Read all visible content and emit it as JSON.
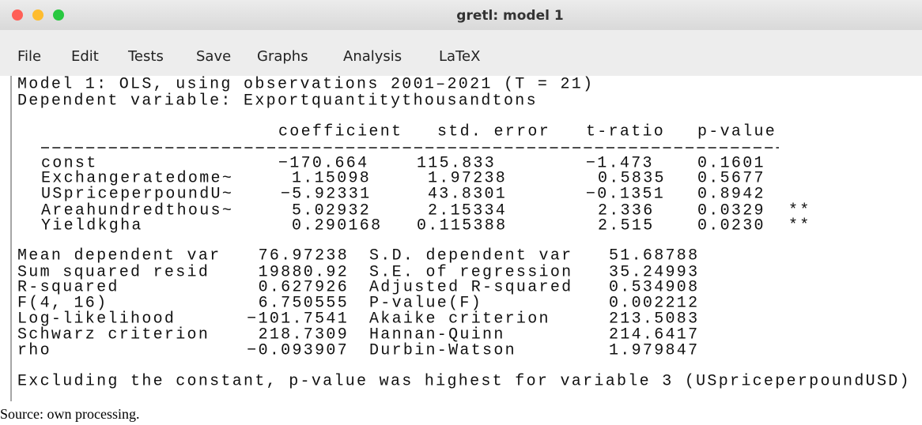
{
  "window": {
    "title": "gretl: model 1"
  },
  "menu": [
    "File",
    "Edit",
    "Tests",
    "Save",
    "Graphs",
    "Analysis",
    "LaTeX"
  ],
  "output": {
    "heading": [
      "Model 1: OLS, using observations 2001–2021 (T = 21)",
      "Dependent variable: Exportquantitythousandtons"
    ],
    "table": {
      "columns": [
        "coefficient",
        "std. error",
        "t-ratio",
        "p-value"
      ],
      "rows": [
        {
          "name": "const",
          "coefficient": "−170.664",
          "std_error": "115.833",
          "t_ratio": "−1.473",
          "p_value": "0.1601"
        },
        {
          "name": "Exchangeratedome~",
          "coefficient": "1.15098",
          "std_error": "1.97238",
          "t_ratio": "0.5835",
          "p_value": "0.5677"
        },
        {
          "name": "USpriceperpoundU~",
          "coefficient": "−5.92331",
          "std_error": "43.8301",
          "t_ratio": "−0.1351",
          "p_value": "0.8942"
        },
        {
          "name": "Areahundredthous~",
          "coefficient": "5.02932",
          "std_error": "2.15334",
          "t_ratio": "2.336",
          "p_value": "0.0329",
          "stars": "**"
        },
        {
          "name": "Yieldkgha",
          "coefficient": "0.290168",
          "std_error": "0.115388",
          "t_ratio": "2.515",
          "p_value": "0.0230",
          "stars": "**"
        }
      ]
    },
    "stats": [
      [
        "Mean dependent var",
        "76.97238",
        "S.D. dependent var",
        "51.68788"
      ],
      [
        "Sum squared resid",
        "19880.92",
        "S.E. of regression",
        "35.24993"
      ],
      [
        "R-squared",
        "0.627926",
        "Adjusted R-squared",
        "0.534908"
      ],
      [
        "F(4, 16)",
        "6.750555",
        "P-value(F)",
        "0.002212"
      ],
      [
        "Log-likelihood",
        "−101.7541",
        "Akaike criterion",
        "213.5083"
      ],
      [
        "Schwarz criterion",
        "218.7309",
        "Hannan-Quinn",
        "214.6417"
      ],
      [
        "rho",
        "−0.093907",
        "Durbin-Watson",
        "1.979847"
      ]
    ],
    "note": "Excluding the constant, p-value was highest for variable 3 (USpriceperpoundUSD)"
  },
  "source": "Source: own processing."
}
